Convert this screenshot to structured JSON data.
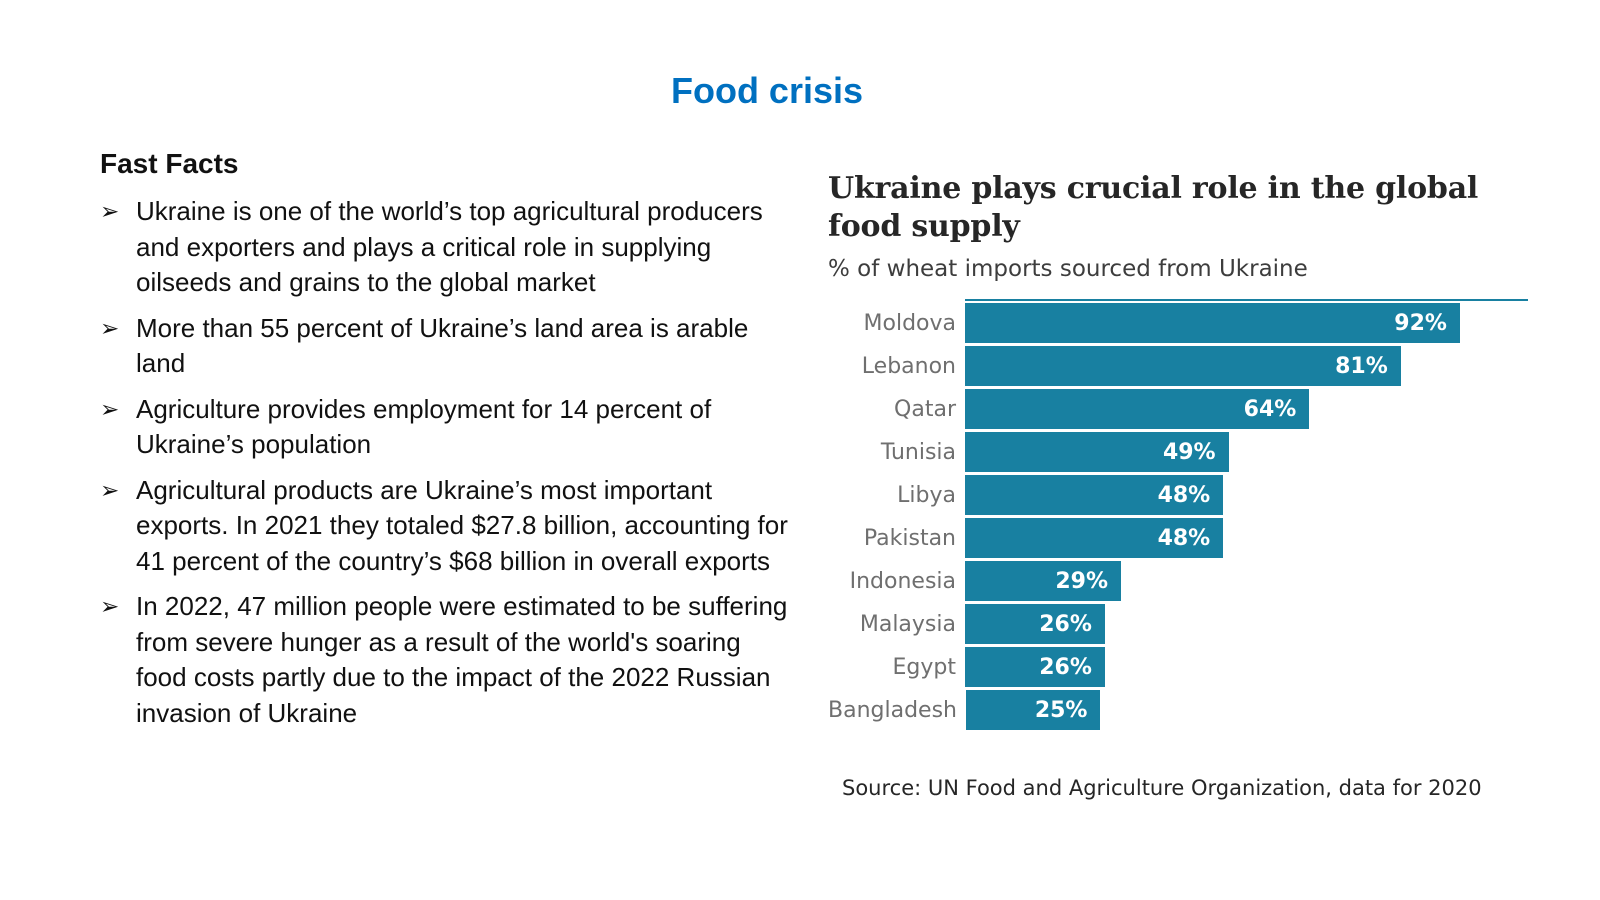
{
  "slide": {
    "title": "Food crisis",
    "fast_facts_heading": "Fast Facts",
    "bullet_marker": "➢",
    "bullets": [
      "Ukraine is one of the world’s top agricultural producers and exporters and plays a critical role in supplying oilseeds and grains to the global market",
      "More than 55 percent of Ukraine’s land area is arable land",
      "Agriculture provides employment for 14 percent of Ukraine’s population",
      "Agricultural products are Ukraine’s most important exports. In 2021 they totaled $27.8 billion, accounting for 41 percent of the country’s $68 billion in overall exports",
      "In 2022, 47 million people were estimated to be suffering from severe hunger as a result of the world's soaring food costs partly due to the impact of the 2022 Russian invasion of Ukraine"
    ]
  },
  "chart": {
    "title_display": "Ukraine plays crucial role in the global\nfood supply",
    "subtitle": "% of wheat imports sourced from Ukraine",
    "source": "Source: UN Food and Agriculture Organization, data for 2020"
  },
  "chart_data": {
    "type": "bar",
    "orientation": "horizontal",
    "title": "Ukraine plays crucial role in the global food supply",
    "subtitle": "% of wheat imports sourced from Ukraine",
    "source": "Source: UN Food and Agriculture Organization, data for 2020",
    "categories": [
      "Moldova",
      "Lebanon",
      "Qatar",
      "Tunisia",
      "Libya",
      "Pakistan",
      "Indonesia",
      "Malaysia",
      "Egypt",
      "Bangladesh"
    ],
    "values": [
      92,
      81,
      64,
      49,
      48,
      48,
      29,
      26,
      26,
      25
    ],
    "value_labels": [
      "92%",
      "81%",
      "64%",
      "49%",
      "48%",
      "48%",
      "29%",
      "26%",
      "26%",
      "25%"
    ],
    "xlim": [
      0,
      100
    ],
    "grid": false,
    "legend": false,
    "value_labels_position": "inside-end"
  },
  "colors": {
    "title_blue": "#0070C0",
    "bar_teal": "#1880a1",
    "category_label_gray": "#6f6f6f",
    "value_label_white": "#ffffff",
    "text_black": "#111111"
  }
}
